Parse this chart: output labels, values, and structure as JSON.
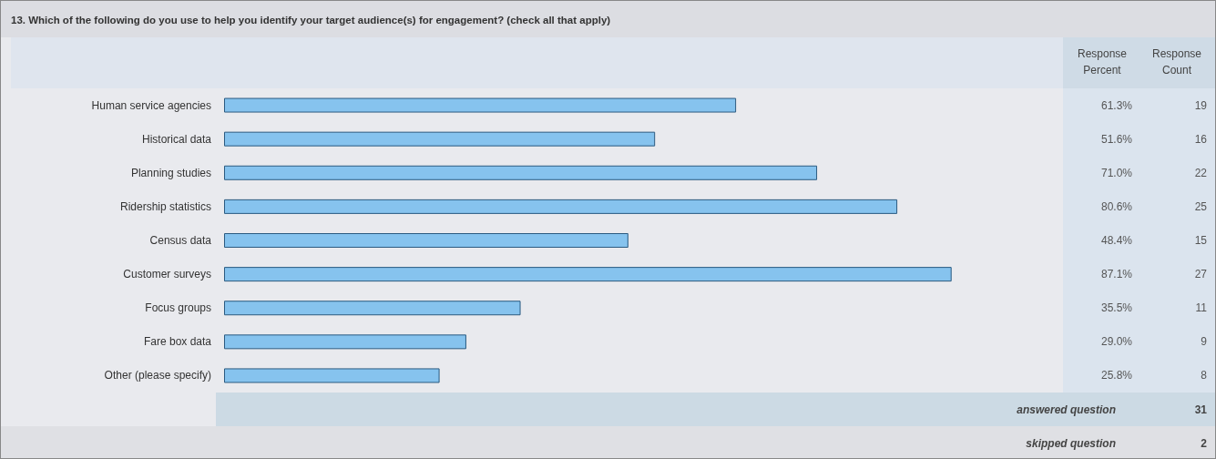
{
  "chart_data": {
    "type": "bar",
    "orientation": "horizontal",
    "title": "13. Which of the following do you use to help you identify your target audience(s) for engagement? (check all that apply)",
    "categories": [
      "Human service agencies",
      "Historical data",
      "Planning studies",
      "Ridership statistics",
      "Census data",
      "Customer surveys",
      "Focus groups",
      "Fare box data",
      "Other (please specify)"
    ],
    "values": [
      61.3,
      51.6,
      71.0,
      80.6,
      48.4,
      87.1,
      35.5,
      29.0,
      25.8
    ],
    "value_labels": [
      "61.3%",
      "51.6%",
      "71.0%",
      "80.6%",
      "48.4%",
      "87.1%",
      "35.5%",
      "29.0%",
      "25.8%"
    ],
    "color": "#86c3ee",
    "tick_labels": "y",
    "annotations": [
      "Response Percent",
      "Response Count",
      "19",
      "16",
      "22",
      "25",
      "15",
      "27",
      "11",
      "9",
      "8",
      "answered question",
      "31",
      "skipped question",
      "2"
    ]
  }
}
